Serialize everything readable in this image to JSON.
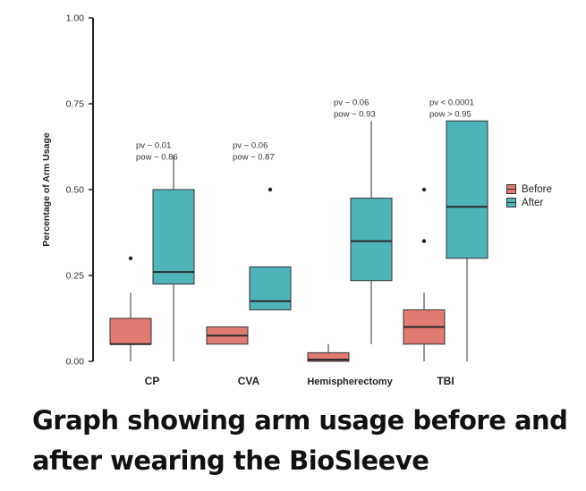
{
  "chart_data": {
    "type": "boxplot",
    "ylabel": "Percentage of Arm Usage",
    "xlabel": "",
    "ylim": [
      0,
      1
    ],
    "yticks": [
      "0.00",
      "0.25",
      "0.50",
      "0.75",
      "1.00"
    ],
    "categories": [
      "CP",
      "CVA",
      "Hemispherectomy",
      "TBI"
    ],
    "series": [
      {
        "name": "Before",
        "color": "#E07B72",
        "boxes": [
          {
            "category": "CP",
            "whisker_low": 0.0,
            "q1": 0.05,
            "median": 0.05,
            "q3": 0.125,
            "whisker_high": 0.2,
            "outliers": [
              0.3
            ]
          },
          {
            "category": "CVA",
            "whisker_low": 0.05,
            "q1": 0.05,
            "median": 0.075,
            "q3": 0.1,
            "whisker_high": 0.1,
            "outliers": []
          },
          {
            "category": "Hemispherectomy",
            "whisker_low": 0.0,
            "q1": 0.0,
            "median": 0.005,
            "q3": 0.025,
            "whisker_high": 0.05,
            "outliers": []
          },
          {
            "category": "TBI",
            "whisker_low": 0.0,
            "q1": 0.05,
            "median": 0.1,
            "q3": 0.15,
            "whisker_high": 0.2,
            "outliers": [
              0.35,
              0.5
            ]
          }
        ]
      },
      {
        "name": "After",
        "color": "#4FB3BA",
        "boxes": [
          {
            "category": "CP",
            "whisker_low": 0.0,
            "q1": 0.225,
            "median": 0.26,
            "q3": 0.5,
            "whisker_high": 0.6,
            "outliers": []
          },
          {
            "category": "CVA",
            "whisker_low": 0.15,
            "q1": 0.15,
            "median": 0.175,
            "q3": 0.275,
            "whisker_high": 0.275,
            "outliers": [
              0.5
            ]
          },
          {
            "category": "Hemispherectomy",
            "whisker_low": 0.05,
            "q1": 0.235,
            "median": 0.35,
            "q3": 0.475,
            "whisker_high": 0.7,
            "outliers": []
          },
          {
            "category": "TBI",
            "whisker_low": 0.0,
            "q1": 0.3,
            "median": 0.45,
            "q3": 0.7,
            "whisker_high": 0.7,
            "outliers": []
          }
        ]
      }
    ],
    "annotations": [
      {
        "category": "CP",
        "lines": [
          "pv ~ 0.01",
          "pow ~ 0.86"
        ],
        "y": 0.6
      },
      {
        "category": "CVA",
        "lines": [
          "pv ~ 0.06",
          "pow ~ 0.87"
        ],
        "y": 0.6
      },
      {
        "category": "Hemispherectomy",
        "lines": [
          "pv ~ 0.06",
          "pow ~ 0.93"
        ],
        "y": 0.725
      },
      {
        "category": "TBI",
        "lines": [
          "pv < 0.0001",
          "pow > 0.95"
        ],
        "y": 0.725
      }
    ],
    "legend": {
      "position": "right",
      "entries": [
        "Before",
        "After"
      ]
    },
    "grid": false
  },
  "caption": "Graph showing arm usage before and after wearing the BioSleeve"
}
